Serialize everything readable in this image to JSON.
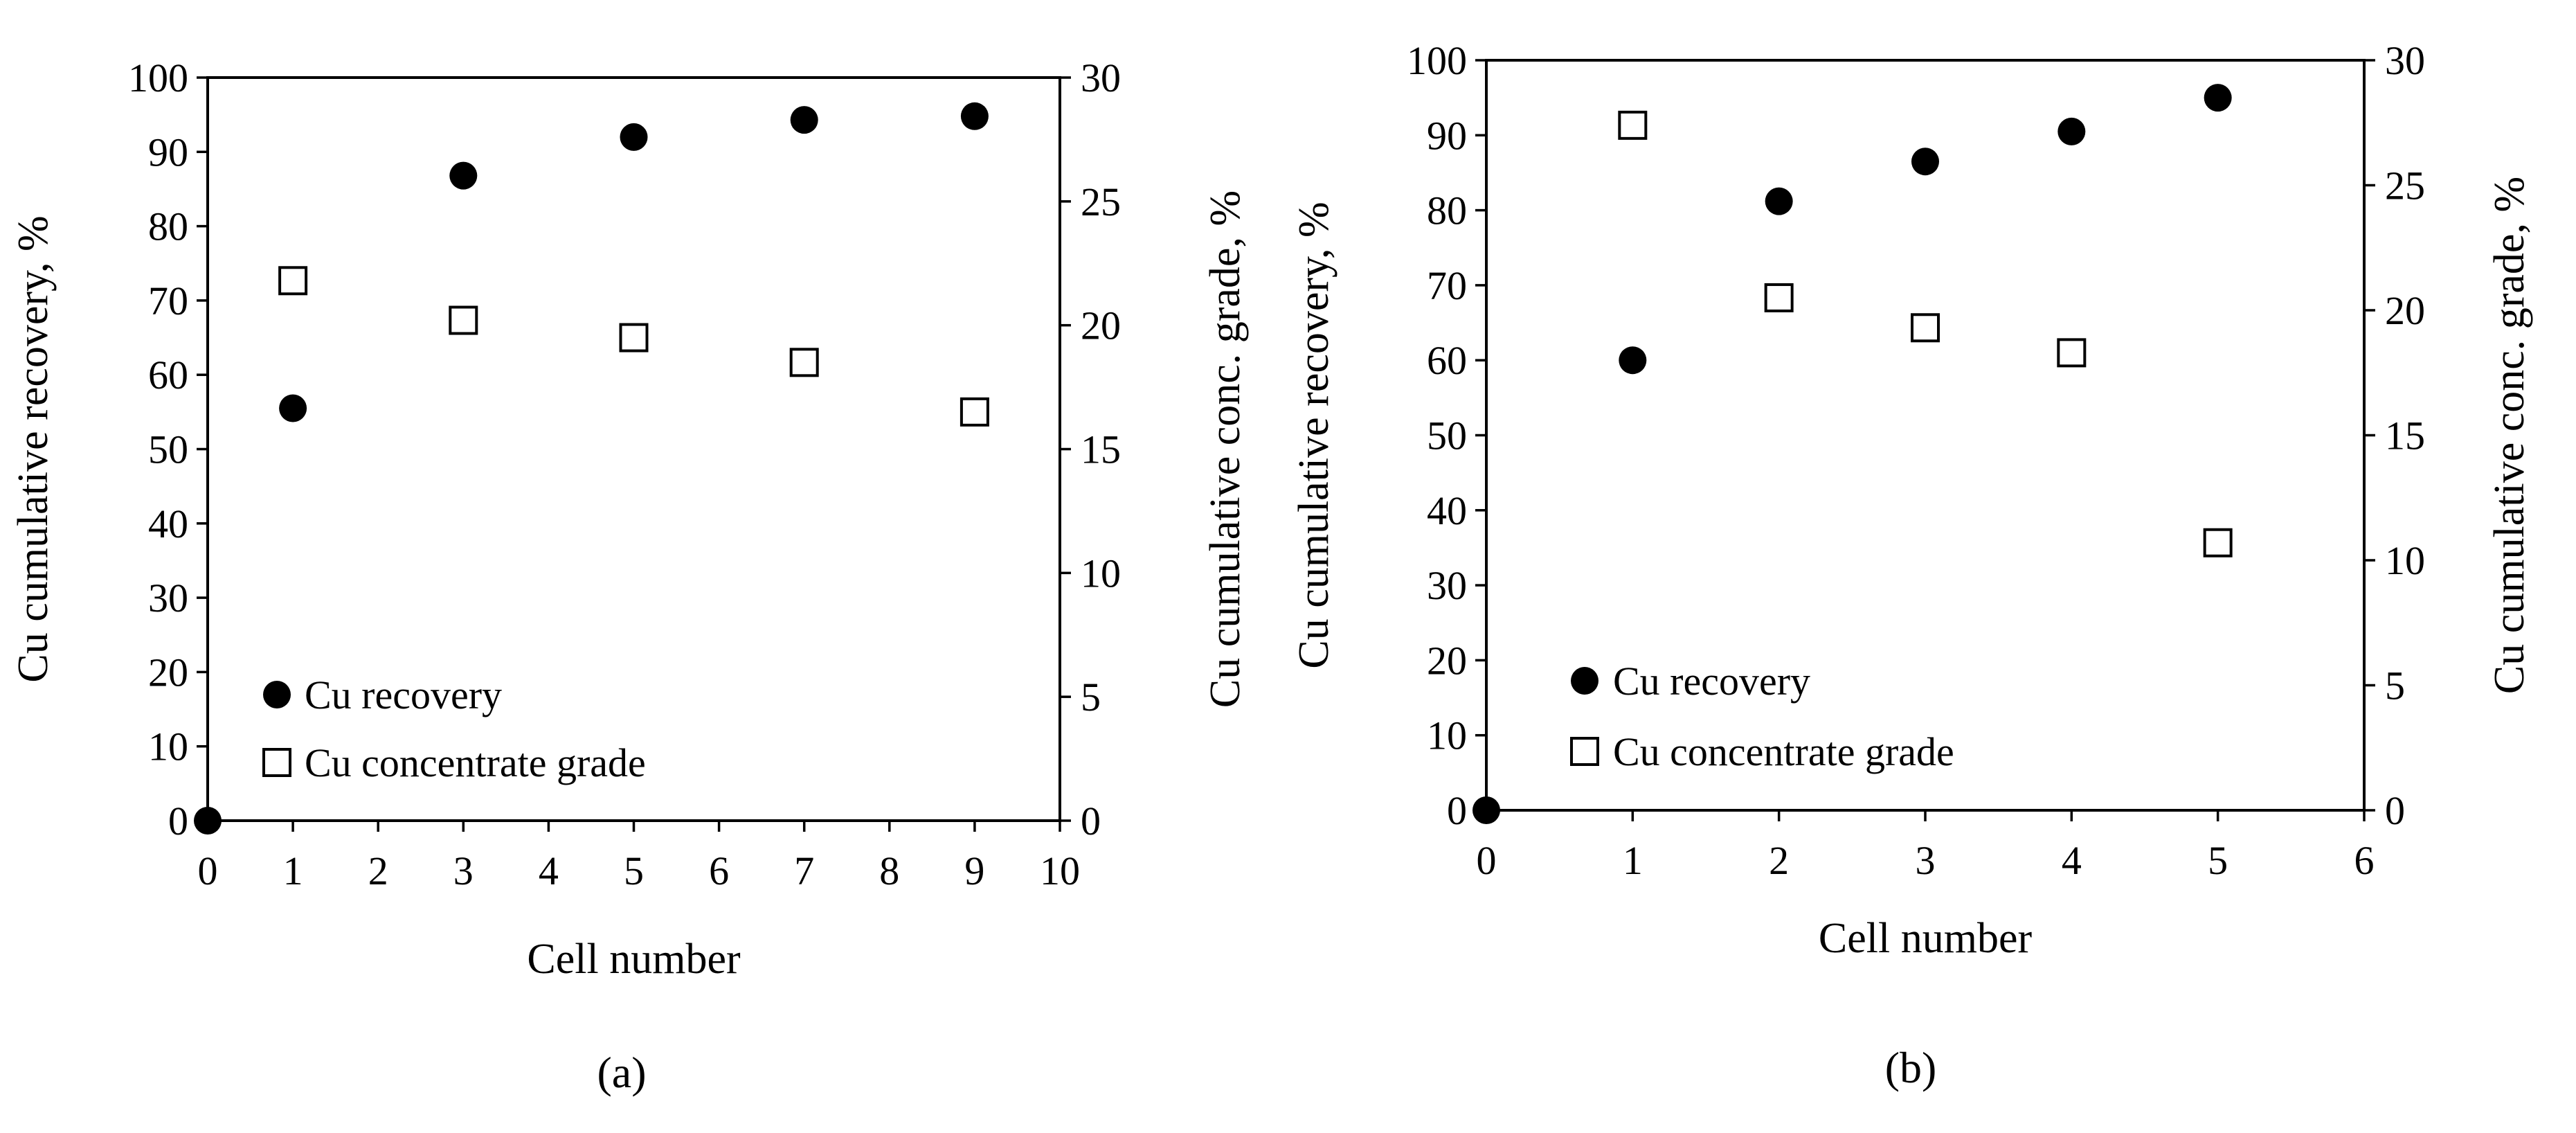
{
  "chart_data": [
    {
      "type": "scatter",
      "caption": "(a)",
      "xlabel": "Cell number",
      "ylabel_left": "Cu cumulative recovery, %",
      "ylabel_right": "Cu cumulative conc. grade, %",
      "xlim": [
        0,
        10
      ],
      "ylim_left": [
        0,
        100
      ],
      "ylim_right": [
        0,
        30
      ],
      "x_ticks": [
        0,
        1,
        2,
        3,
        4,
        5,
        6,
        7,
        8,
        9,
        10
      ],
      "y_left_ticks": [
        0,
        10,
        20,
        30,
        40,
        50,
        60,
        70,
        80,
        90,
        100
      ],
      "y_right_ticks": [
        0,
        5,
        10,
        15,
        20,
        25,
        30
      ],
      "grid": false,
      "legend_position": "bottom-left",
      "series": [
        {
          "name": "Cu recovery",
          "marker": "filled-circle",
          "axis": "left",
          "x": [
            0,
            1,
            3,
            5,
            7,
            9
          ],
          "y": [
            0,
            55.5,
            86.8,
            92.0,
            94.3,
            94.8
          ]
        },
        {
          "name": "Cu concentrate grade",
          "marker": "open-square",
          "axis": "right",
          "x": [
            1,
            3,
            5,
            7,
            9
          ],
          "y": [
            21.8,
            20.2,
            19.5,
            18.5,
            16.5
          ]
        }
      ]
    },
    {
      "type": "scatter",
      "caption": "(b)",
      "xlabel": "Cell number",
      "ylabel_left": "Cu cumulative recovery, %",
      "ylabel_right": "Cu cumulative conc. grade, %",
      "xlim": [
        0,
        6
      ],
      "ylim_left": [
        0,
        100
      ],
      "ylim_right": [
        0,
        30
      ],
      "x_ticks": [
        0,
        1,
        2,
        3,
        4,
        5,
        6
      ],
      "y_left_ticks": [
        0,
        10,
        20,
        30,
        40,
        50,
        60,
        70,
        80,
        90,
        100
      ],
      "y_right_ticks": [
        0,
        5,
        10,
        15,
        20,
        25,
        30
      ],
      "grid": false,
      "legend_position": "bottom-left",
      "series": [
        {
          "name": "Cu recovery",
          "marker": "filled-circle",
          "axis": "left",
          "x": [
            0,
            1,
            2,
            3,
            4,
            5
          ],
          "y": [
            0,
            60.0,
            81.2,
            86.5,
            90.5,
            95.0
          ]
        },
        {
          "name": "Cu concentrate grade",
          "marker": "open-square",
          "axis": "right",
          "x": [
            1,
            2,
            3,
            4,
            5
          ],
          "y": [
            27.4,
            20.5,
            19.3,
            18.3,
            10.7
          ]
        }
      ]
    }
  ]
}
